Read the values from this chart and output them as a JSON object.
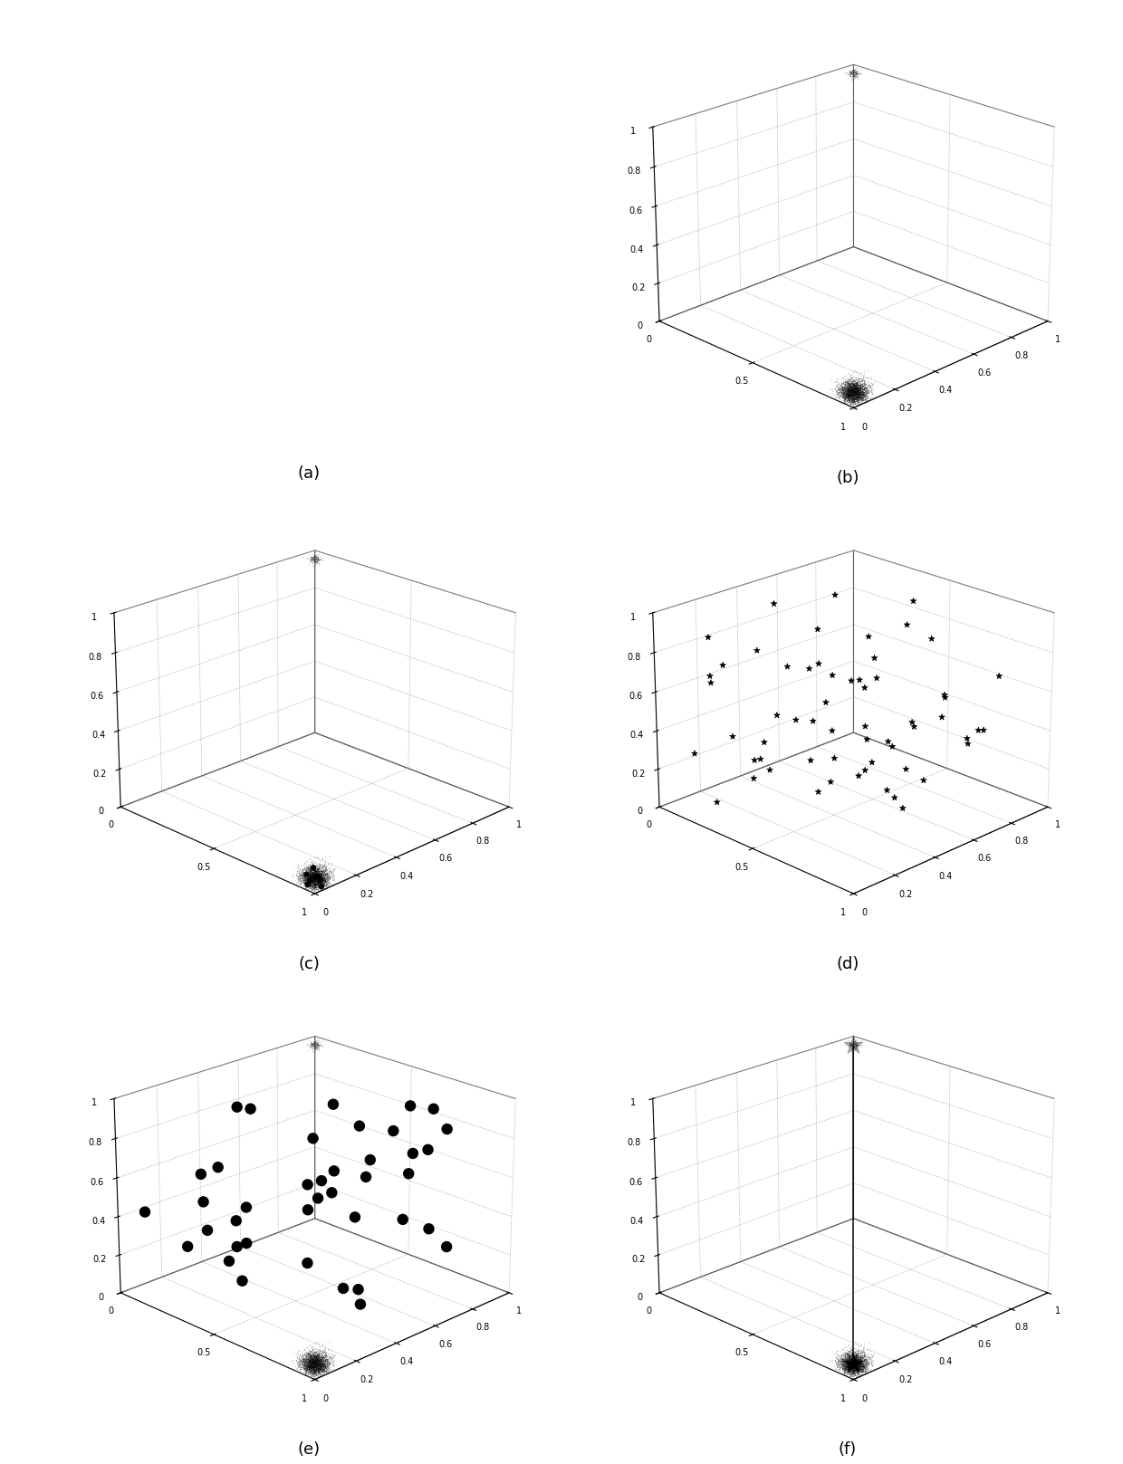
{
  "fig_width": 12.4,
  "fig_height": 16.17,
  "bg_color": "#ffffff",
  "labels": [
    "(a)",
    "(b)",
    "(c)",
    "(d)",
    "(e)",
    "(f)"
  ],
  "n_black": 3000,
  "n_white": 150,
  "seed_main": 42,
  "seed_modes_d": 77,
  "seed_modes_e": 55,
  "n_modes_d": 60,
  "n_modes_e": 40,
  "elev_b": 22,
  "azim_b": 225,
  "elev_c": 22,
  "azim_c": 225,
  "elev_d": 22,
  "azim_d": 225,
  "elev_e": 22,
  "azim_e": 225,
  "elev_f": 22,
  "azim_f": 225
}
